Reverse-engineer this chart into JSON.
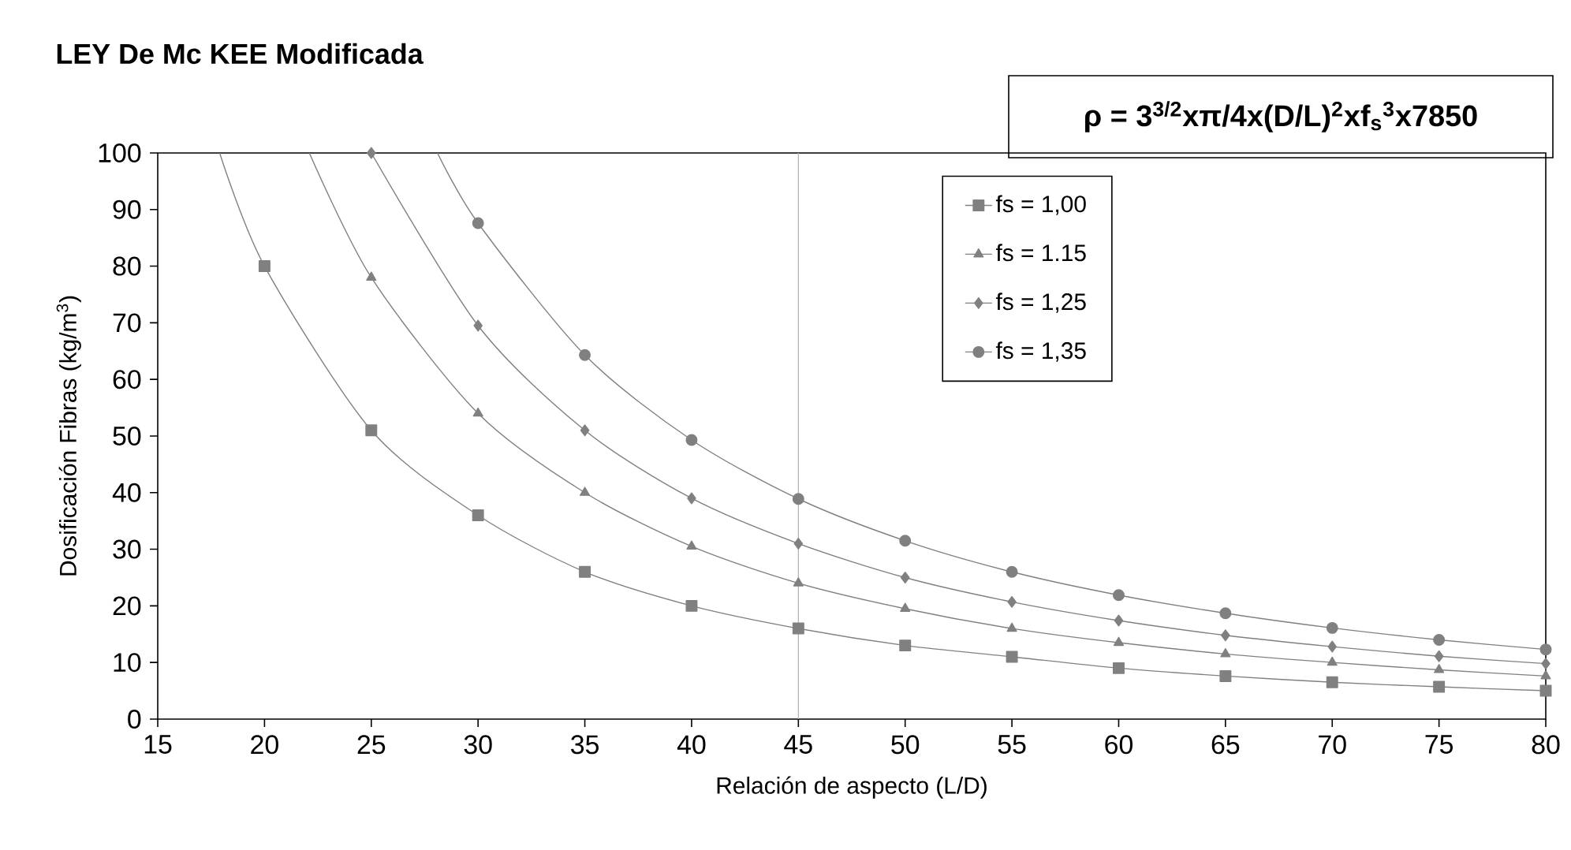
{
  "chart_data": {
    "type": "line",
    "title": "LEY De Mc KEE Modificada",
    "annotations": [
      "**ρ = 3$^{3/2}$xπ/4x(D/L)$^{2}$xf$_{s}$$^{3}$x7850**"
    ],
    "xlabel": "Relación de aspecto (L/D)",
    "ylabel": "Dosificación Fibras  (kg/m$^{3}$)",
    "xlim": [
      15,
      80
    ],
    "ylim": [
      0,
      100
    ],
    "xticks": [
      15,
      20,
      25,
      30,
      35,
      40,
      45,
      50,
      55,
      60,
      65,
      70,
      75,
      80
    ],
    "yticks": [
      0,
      10,
      20,
      30,
      40,
      50,
      60,
      70,
      80,
      90,
      100
    ],
    "ref_lines": [
      {
        "axis": "x",
        "value": 45,
        "color": "#b0b0b0"
      }
    ],
    "legend": "top right",
    "grid": false,
    "series": [
      {
        "name": "fs = 1,00",
        "color": "#808080",
        "marker": "square",
        "x": [
          17.9,
          20,
          25,
          30,
          35,
          40,
          45,
          50,
          55,
          60,
          65,
          70,
          75,
          80
        ],
        "values": [
          100,
          80,
          51,
          36,
          26,
          20,
          16,
          13,
          11,
          9,
          7.6,
          6.5,
          5.7,
          5
        ]
      },
      {
        "name": "fs = 1.15",
        "color": "#808080",
        "marker": "triangle",
        "x": [
          22.1,
          25,
          30,
          35,
          40,
          45,
          50,
          55,
          60,
          65,
          70,
          75,
          80
        ],
        "values": [
          100,
          78,
          54,
          40,
          30.5,
          24,
          19.5,
          16,
          13.5,
          11.5,
          10,
          8.7,
          7.6
        ]
      },
      {
        "name": "fs = 1,25",
        "color": "#808080",
        "marker": "diamond",
        "x": [
          25,
          30,
          35,
          40,
          45,
          50,
          55,
          60,
          65,
          70,
          75,
          80
        ],
        "values": [
          100,
          69.5,
          51,
          39,
          31,
          25,
          20.7,
          17.4,
          14.8,
          12.8,
          11.1,
          9.8
        ]
      },
      {
        "name": "fs = 1,35",
        "color": "#808080",
        "marker": "circle",
        "x": [
          28.1,
          30,
          35,
          40,
          45,
          50,
          55,
          60,
          65,
          70,
          75,
          80
        ],
        "values": [
          100,
          87.6,
          64.3,
          49.3,
          38.9,
          31.5,
          26,
          21.9,
          18.7,
          16.1,
          14,
          12.3
        ]
      }
    ]
  }
}
